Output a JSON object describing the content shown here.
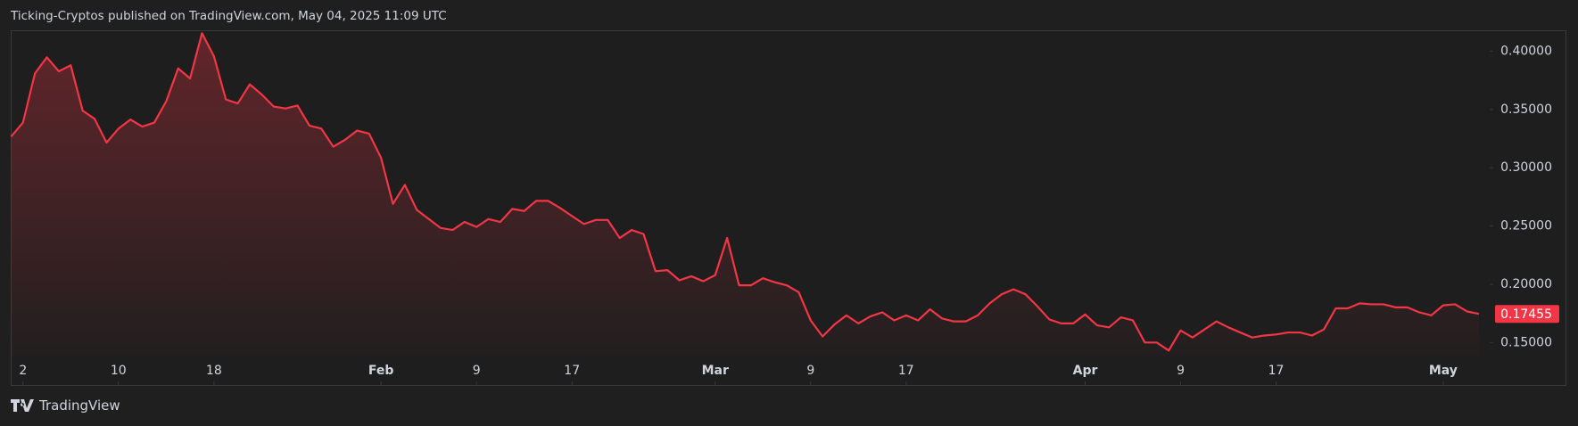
{
  "header": "Ticking-Cryptos published on TradingView.com, May 04, 2025 11:09 UTC",
  "footer": "TradingView",
  "chart_data": {
    "type": "area",
    "color": "#f23645",
    "x": [
      1,
      2,
      3,
      4,
      5,
      6,
      7,
      8,
      9,
      10,
      11,
      12,
      13,
      14,
      15,
      16,
      17,
      18,
      19,
      20,
      21,
      22,
      23,
      24,
      25,
      26,
      27,
      28,
      29,
      30,
      31,
      32,
      33,
      34,
      35,
      36,
      37,
      38,
      39,
      40,
      41,
      42,
      43,
      44,
      45,
      46,
      47,
      48,
      49,
      50,
      51,
      52,
      53,
      54,
      55,
      56,
      57,
      58,
      59,
      60,
      61,
      62,
      63,
      64,
      65,
      66,
      67,
      68,
      69,
      70,
      71,
      72,
      73,
      74,
      75,
      76,
      77,
      78,
      79,
      80,
      81,
      82,
      83,
      84,
      85,
      86,
      87,
      88,
      89,
      90,
      91,
      92,
      93,
      94,
      95,
      96,
      97,
      98,
      99,
      100,
      101,
      102,
      103,
      104,
      105,
      106,
      107,
      108,
      109,
      110,
      111,
      112,
      113,
      114,
      115,
      116,
      117,
      118,
      119,
      120,
      121,
      122,
      123,
      124
    ],
    "values": [
      0.3267,
      0.3388,
      0.381,
      0.3948,
      0.3828,
      0.388,
      0.349,
      0.342,
      0.3216,
      0.3336,
      0.3414,
      0.3353,
      0.3388,
      0.357,
      0.3853,
      0.3767,
      0.4155,
      0.3957,
      0.3586,
      0.3552,
      0.3716,
      0.3629,
      0.3526,
      0.3509,
      0.3534,
      0.3362,
      0.3336,
      0.3181,
      0.3241,
      0.3319,
      0.3293,
      0.3086,
      0.269,
      0.2853,
      0.2638,
      0.256,
      0.2483,
      0.2466,
      0.2535,
      0.2492,
      0.256,
      0.2535,
      0.2647,
      0.2629,
      0.2716,
      0.2716,
      0.2655,
      0.2586,
      0.2517,
      0.2552,
      0.2552,
      0.2397,
      0.2466,
      0.2431,
      0.2112,
      0.2121,
      0.2034,
      0.2069,
      0.2026,
      0.2078,
      0.2397,
      0.1991,
      0.1991,
      0.2052,
      0.2017,
      0.1991,
      0.1931,
      0.169,
      0.1552,
      0.1655,
      0.1733,
      0.1664,
      0.1724,
      0.1759,
      0.169,
      0.1733,
      0.169,
      0.1785,
      0.1707,
      0.1681,
      0.1681,
      0.1733,
      0.1836,
      0.1914,
      0.1957,
      0.1914,
      0.181,
      0.1698,
      0.1664,
      0.1664,
      0.1741,
      0.1647,
      0.163,
      0.1716,
      0.169,
      0.15,
      0.15,
      0.1431,
      0.1603,
      0.1543,
      0.1612,
      0.1681,
      0.163,
      0.1586,
      0.1543,
      0.156,
      0.1569,
      0.1586,
      0.1586,
      0.156,
      0.1612,
      0.1793,
      0.1793,
      0.1836,
      0.1828,
      0.1828,
      0.1802,
      0.1802,
      0.1759,
      0.1733,
      0.1819,
      0.1828,
      0.1767,
      0.17455
    ],
    "xlim": [
      1,
      124
    ],
    "xticks": [
      {
        "value": 2,
        "label": "2"
      },
      {
        "value": 10,
        "label": "10"
      },
      {
        "value": 18,
        "label": "18"
      },
      {
        "value": 32,
        "label": "Feb"
      },
      {
        "value": 40,
        "label": "9"
      },
      {
        "value": 48,
        "label": "17"
      },
      {
        "value": 60,
        "label": "Mar"
      },
      {
        "value": 68,
        "label": "9"
      },
      {
        "value": 76,
        "label": "17"
      },
      {
        "value": 91,
        "label": "Apr"
      },
      {
        "value": 99,
        "label": "9"
      },
      {
        "value": 107,
        "label": "17"
      },
      {
        "value": 121,
        "label": "May"
      }
    ],
    "ylim": [
      0.138,
      0.418
    ],
    "yticks": [
      {
        "value": 0.15,
        "label": "0.15000"
      },
      {
        "value": 0.2,
        "label": "0.20000"
      },
      {
        "value": 0.25,
        "label": "0.25000"
      },
      {
        "value": 0.3,
        "label": "0.30000"
      },
      {
        "value": 0.35,
        "label": "0.35000"
      },
      {
        "value": 0.4,
        "label": "0.40000"
      }
    ]
  }
}
